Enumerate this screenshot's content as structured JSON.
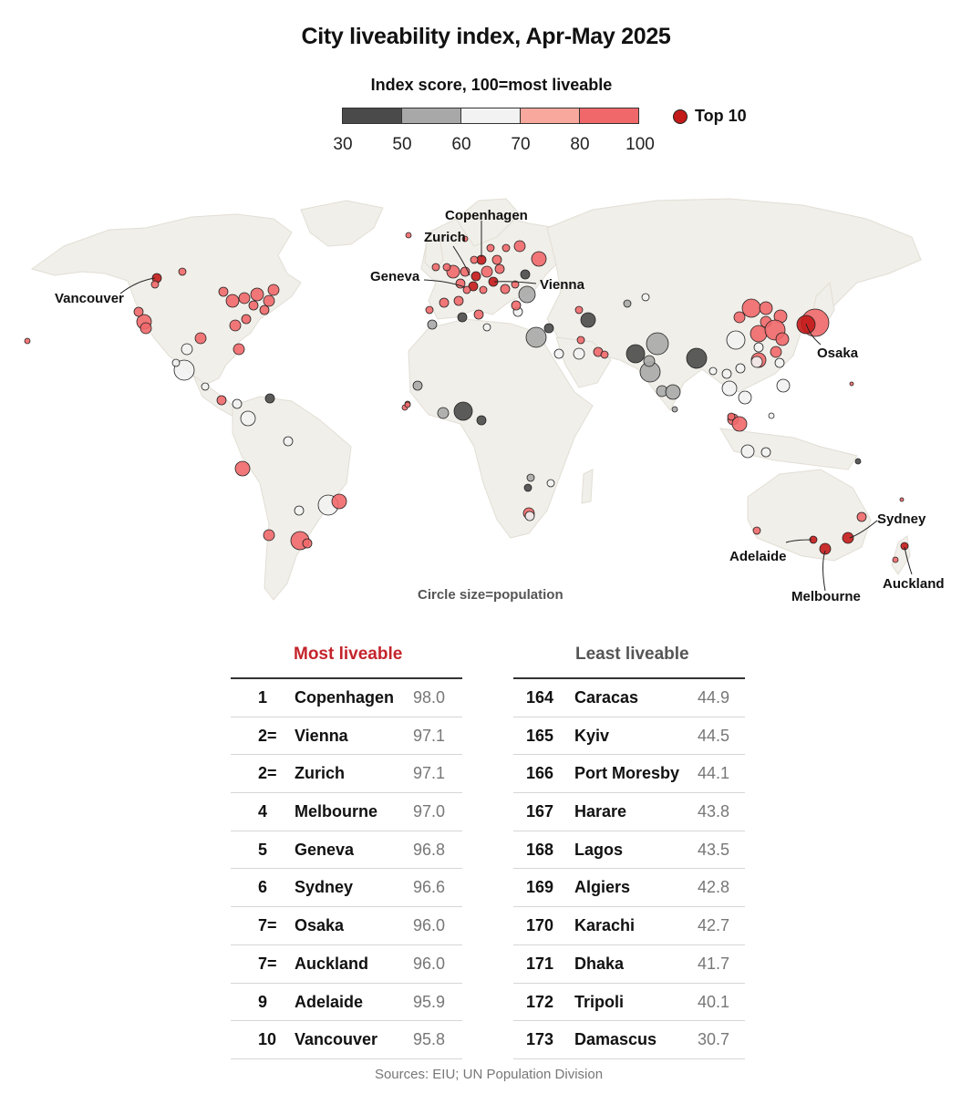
{
  "title": "City liveability index, Apr-May 2025",
  "legend": {
    "title": "Index score, 100=most liveable",
    "bins": [
      {
        "from": 30,
        "to": 50,
        "color": "#4a4a4a"
      },
      {
        "from": 50,
        "to": 60,
        "color": "#a8a8a8"
      },
      {
        "from": 60,
        "to": 70,
        "color": "#f2f2f2"
      },
      {
        "from": 70,
        "to": 80,
        "color": "#f8a89c"
      },
      {
        "from": 80,
        "to": 100,
        "color": "#f0686a"
      }
    ],
    "ticks": [
      "30",
      "50",
      "60",
      "70",
      "80",
      "100"
    ],
    "top10_label": "Top 10",
    "top10_color": "#c31a1a"
  },
  "map": {
    "caption": "Circle size=population",
    "land_color": "#f1efe9",
    "labels": [
      "Vancouver",
      "Copenhagen",
      "Zurich",
      "Geneva",
      "Vienna",
      "Osaka",
      "Sydney",
      "Adelaide",
      "Melbourne",
      "Auckland"
    ]
  },
  "tables": {
    "most": {
      "heading": "Most liveable",
      "rows": [
        {
          "rank": "1",
          "city": "Copenhagen",
          "score": "98.0"
        },
        {
          "rank": "2=",
          "city": "Vienna",
          "score": "97.1"
        },
        {
          "rank": "2=",
          "city": "Zurich",
          "score": "97.1"
        },
        {
          "rank": "4",
          "city": "Melbourne",
          "score": "97.0"
        },
        {
          "rank": "5",
          "city": "Geneva",
          "score": "96.8"
        },
        {
          "rank": "6",
          "city": "Sydney",
          "score": "96.6"
        },
        {
          "rank": "7=",
          "city": "Osaka",
          "score": "96.0"
        },
        {
          "rank": "7=",
          "city": "Auckland",
          "score": "96.0"
        },
        {
          "rank": "9",
          "city": "Adelaide",
          "score": "95.9"
        },
        {
          "rank": "10",
          "city": "Vancouver",
          "score": "95.8"
        }
      ]
    },
    "least": {
      "heading": "Least liveable",
      "rows": [
        {
          "rank": "164",
          "city": "Caracas",
          "score": "44.9"
        },
        {
          "rank": "165",
          "city": "Kyiv",
          "score": "44.5"
        },
        {
          "rank": "166",
          "city": "Port Moresby",
          "score": "44.1"
        },
        {
          "rank": "167",
          "city": "Harare",
          "score": "43.8"
        },
        {
          "rank": "168",
          "city": "Lagos",
          "score": "43.5"
        },
        {
          "rank": "169",
          "city": "Algiers",
          "score": "42.8"
        },
        {
          "rank": "170",
          "city": "Karachi",
          "score": "42.7"
        },
        {
          "rank": "171",
          "city": "Dhaka",
          "score": "41.7"
        },
        {
          "rank": "172",
          "city": "Tripoli",
          "score": "40.1"
        },
        {
          "rank": "173",
          "city": "Damascus",
          "score": "30.7"
        }
      ]
    }
  },
  "source": "Sources: EIU; UN Population Division"
}
